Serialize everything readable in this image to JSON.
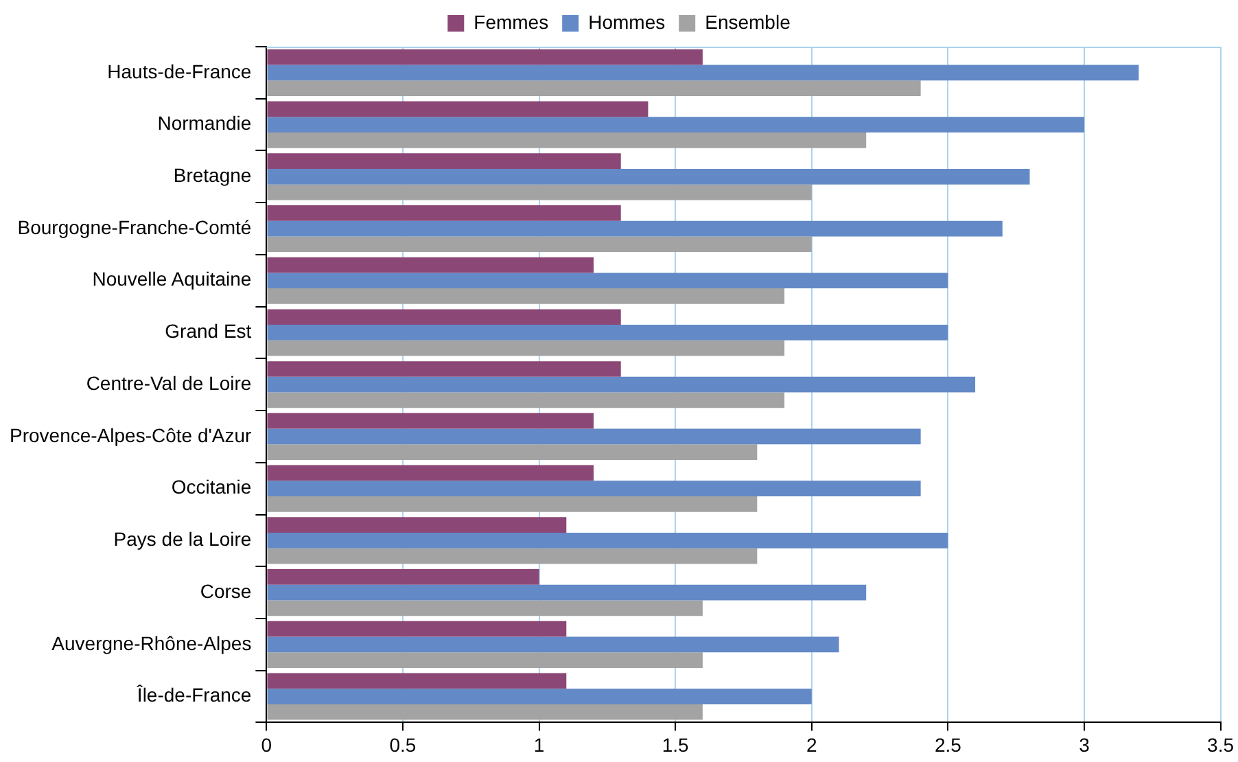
{
  "chart_data": {
    "type": "bar",
    "orientation": "horizontal",
    "categories": [
      "Hauts-de-France",
      "Normandie",
      "Bretagne",
      "Bourgogne-Franche-Comté",
      "Nouvelle Aquitaine",
      "Grand Est",
      "Centre-Val de Loire",
      "Provence-Alpes-Côte d'Azur",
      "Occitanie",
      "Pays de la Loire",
      "Corse",
      "Auvergne-Rhône-Alpes",
      "Île-de-France"
    ],
    "series": [
      {
        "name": "Femmes",
        "color": "#8b4776",
        "values": [
          1.6,
          1.4,
          1.3,
          1.3,
          1.2,
          1.3,
          1.3,
          1.2,
          1.2,
          1.1,
          1.0,
          1.1,
          1.1
        ]
      },
      {
        "name": "Hommes",
        "color": "#6389c6",
        "values": [
          3.2,
          3.0,
          2.8,
          2.7,
          2.5,
          2.5,
          2.6,
          2.4,
          2.4,
          2.5,
          2.2,
          2.1,
          2.0
        ]
      },
      {
        "name": "Ensemble",
        "color": "#a3a3a3",
        "values": [
          2.4,
          2.2,
          2.0,
          2.0,
          1.9,
          1.9,
          1.9,
          1.8,
          1.8,
          1.8,
          1.6,
          1.6,
          1.6
        ]
      }
    ],
    "xlim": [
      0,
      3.5
    ],
    "xticks": [
      0,
      0.5,
      1,
      1.5,
      2,
      2.5,
      3,
      3.5
    ],
    "grid": "x",
    "legend": "top"
  }
}
